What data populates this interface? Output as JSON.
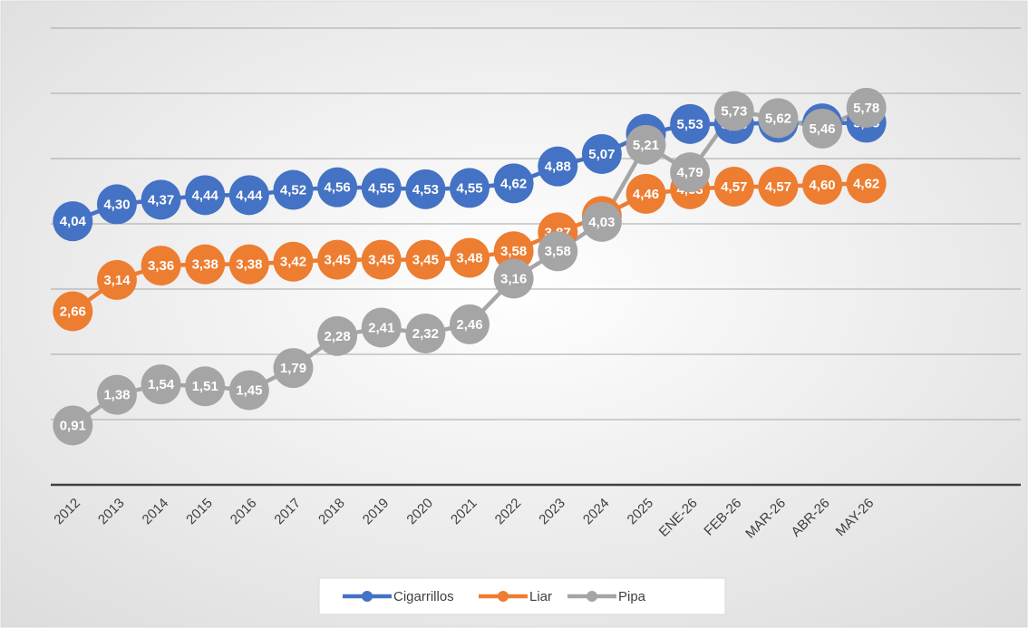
{
  "chart_data": {
    "type": "line",
    "categories": [
      "2012",
      "2013",
      "2014",
      "2015",
      "2016",
      "2017",
      "2018",
      "2019",
      "2020",
      "2021",
      "2022",
      "2023",
      "2024",
      "2025",
      "ENE-26",
      "FEB-26",
      "MAR-26",
      "ABR-26",
      "MAY-26"
    ],
    "ylim": [
      0,
      7
    ],
    "yticks": [
      0,
      1,
      2,
      3,
      4,
      5,
      6,
      7
    ],
    "grid": true,
    "legend": "bottom",
    "series": [
      {
        "name": "Cigarrillos",
        "color": "#4472c4",
        "values": [
          4.04,
          4.3,
          4.37,
          4.44,
          4.44,
          4.52,
          4.56,
          4.55,
          4.53,
          4.55,
          4.62,
          4.88,
          5.07,
          5.38,
          5.53,
          5.53,
          5.55,
          5.54,
          5.55
        ],
        "value_labels": [
          "4,04",
          "4,30",
          "4,37",
          "4,44",
          "4,44",
          "4,52",
          "4,56",
          "4,55",
          "4,53",
          "4,55",
          "4,62",
          "4,88",
          "5,07",
          "5,38",
          "5,53",
          "5,53",
          "5,55",
          "5,54",
          "5,55"
        ]
      },
      {
        "name": "Liar",
        "color": "#ed7d31",
        "values": [
          2.66,
          3.14,
          3.36,
          3.38,
          3.38,
          3.42,
          3.45,
          3.45,
          3.45,
          3.48,
          3.58,
          3.87,
          4.12,
          4.46,
          4.53,
          4.57,
          4.57,
          4.6,
          4.62
        ],
        "value_labels": [
          "2,66",
          "3,14",
          "3,36",
          "3,38",
          "3,38",
          "3,42",
          "3,45",
          "3,45",
          "3,45",
          "3,48",
          "3,58",
          "3,87",
          "4,12",
          "4,46",
          "4,53",
          "4,57",
          "4,57",
          "4,60",
          "4,62"
        ]
      },
      {
        "name": "Pipa",
        "color": "#a5a5a5",
        "values": [
          0.91,
          1.38,
          1.54,
          1.51,
          1.45,
          1.79,
          2.28,
          2.41,
          2.32,
          2.46,
          3.16,
          3.58,
          4.03,
          5.21,
          4.79,
          5.73,
          5.62,
          5.46,
          5.78
        ],
        "value_labels": [
          "0,91",
          "1,38",
          "1,54",
          "1,51",
          "1,45",
          "1,79",
          "2,28",
          "2,41",
          "2,32",
          "2,46",
          "3,16",
          "3,58",
          "4,03",
          "5,21",
          "4,79",
          "5,73",
          "5,62",
          "5,46",
          "5,78"
        ]
      }
    ]
  }
}
